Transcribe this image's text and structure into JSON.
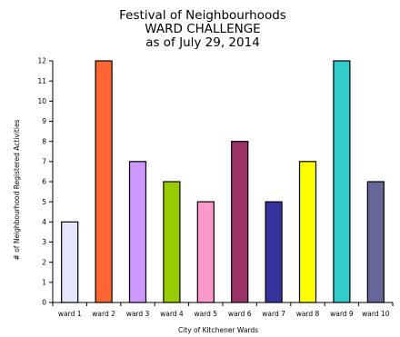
{
  "chart_data": {
    "type": "bar",
    "title_lines": [
      "Festival of Neighbourhoods",
      "WARD CHALLENGE",
      "as of July 29, 2014"
    ],
    "xlabel": "City of Kitchener Wards",
    "ylabel": "# of Neighbourhood Registered Activities",
    "ylim": [
      0,
      12
    ],
    "yticks": [
      "0",
      "1",
      "2",
      "3",
      "4",
      "5",
      "6",
      "7",
      "8",
      "9",
      "10",
      "11",
      "12"
    ],
    "grid": false,
    "legend": "none",
    "categories": [
      "ward 1",
      "ward 2",
      "ward 3",
      "ward 4",
      "ward 5",
      "ward 6",
      "ward 7",
      "ward 8",
      "ward 9",
      "ward 10"
    ],
    "values": [
      4,
      12,
      7,
      6,
      5,
      8,
      5,
      7,
      12,
      6
    ],
    "colors": [
      "#e6e6ff",
      "#ff6633",
      "#cc99ff",
      "#99cc00",
      "#ff99cc",
      "#993366",
      "#333399",
      "#ffff00",
      "#33cccc",
      "#666699"
    ]
  }
}
